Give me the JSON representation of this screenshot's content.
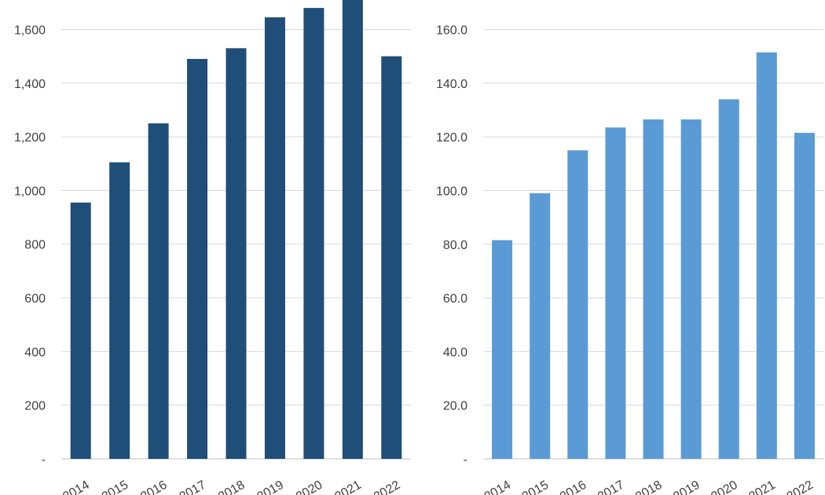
{
  "chart_data": [
    {
      "type": "bar",
      "categories": [
        "2014",
        "2015",
        "2016",
        "2017",
        "2018",
        "2019",
        "2020",
        "2021",
        "2022"
      ],
      "values": [
        955,
        1105,
        1250,
        1490,
        1530,
        1645,
        1680,
        1720,
        1500
      ],
      "ylim": [
        0,
        1700
      ],
      "yticks": [
        "-",
        "200",
        "400",
        "600",
        "800",
        "1,000",
        "1,200",
        "1,400",
        "1,600"
      ],
      "color": "#1f4e79",
      "grid": true,
      "title": "",
      "xlabel": "",
      "ylabel": ""
    },
    {
      "type": "bar",
      "categories": [
        "2014",
        "2015",
        "2016",
        "2017",
        "2018",
        "2019",
        "2020",
        "2021",
        "2022"
      ],
      "values": [
        81.5,
        99.0,
        115.0,
        123.5,
        126.5,
        126.5,
        134.0,
        151.5,
        121.5
      ],
      "ylim": [
        0,
        170
      ],
      "yticks": [
        "-",
        "20.0",
        "40.0",
        "60.0",
        "80.0",
        "100.0",
        "120.0",
        "140.0",
        "160.0"
      ],
      "color": "#5b9bd5",
      "grid": true,
      "title": "",
      "xlabel": "",
      "ylabel": ""
    }
  ]
}
